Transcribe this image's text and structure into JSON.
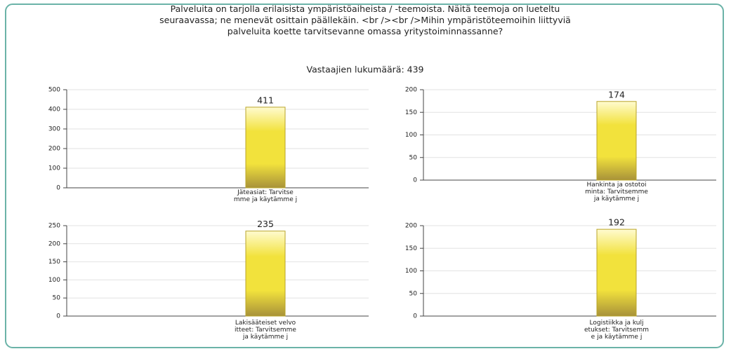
{
  "title": "Palveluita on tarjolla erilaisista ympäristöaiheista / -teemoista. Näitä teemoja on lueteltu\nseuraavassa; ne menevät osittain päällekäin. <br /><br />Mihin ympäristöteemoihin liittyviä\npalveluita koette tarvitsevanne omassa yritystoiminnassanne?",
  "subtitle": "Vastaajien lukumäärä: 439",
  "chart_data": [
    {
      "type": "bar",
      "categories": [
        "Jäteasiat: Tarvitse\nmme ja käytämme j"
      ],
      "values": [
        411
      ],
      "color": "#f2e23c",
      "ylim": [
        0,
        500
      ],
      "yticks": [
        0,
        100,
        200,
        300,
        400,
        500
      ],
      "grid": true
    },
    {
      "type": "bar",
      "categories": [
        "Hankinta ja ostotoi\nminta: Tarvitsemme\nja käytämme j"
      ],
      "values": [
        174
      ],
      "color": "#f2e23c",
      "ylim": [
        0,
        200
      ],
      "yticks": [
        0,
        50,
        100,
        150,
        200
      ],
      "grid": true
    },
    {
      "type": "bar",
      "categories": [
        "Lakisääteiset velvo\nitteet: Tarvitsemme\nja käytämme j"
      ],
      "values": [
        235
      ],
      "color": "#f2e23c",
      "ylim": [
        0,
        250
      ],
      "yticks": [
        0,
        50,
        100,
        150,
        200,
        250
      ],
      "grid": true
    },
    {
      "type": "bar",
      "categories": [
        "Logistiikka ja kulj\netukset: Tarvitsemm\ne ja käytämme j"
      ],
      "values": [
        192
      ],
      "color": "#f2e23c",
      "ylim": [
        0,
        200
      ],
      "yticks": [
        0,
        50,
        100,
        150,
        200
      ],
      "grid": true
    }
  ]
}
